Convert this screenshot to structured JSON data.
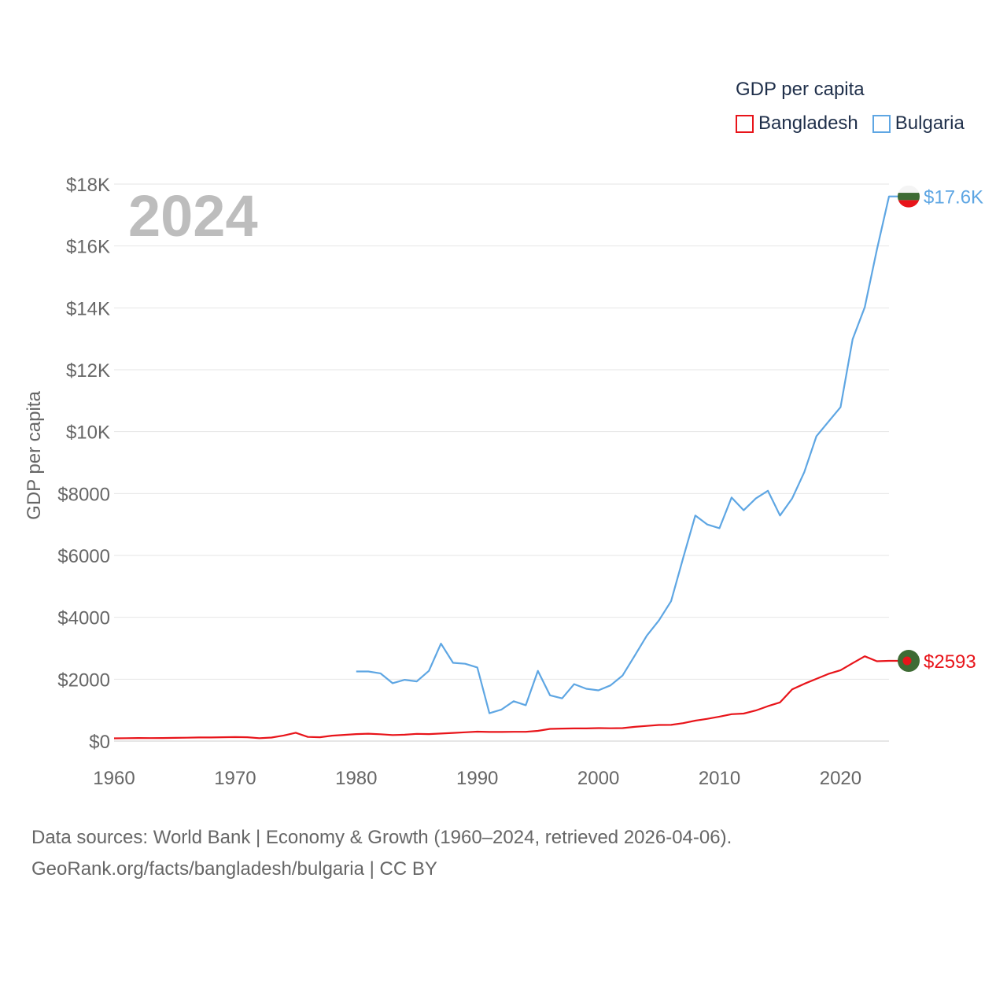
{
  "legend": {
    "title": "GDP per capita",
    "items": [
      {
        "label": "Bangladesh",
        "color": "#e8141a"
      },
      {
        "label": "Bulgaria",
        "color": "#5ea6e3"
      }
    ]
  },
  "year_label": "2024",
  "footer": {
    "line1": "Data sources: World Bank | Economy & Growth (1960–2024, retrieved 2026-04-06).",
    "line2": "GeoRank.org/facts/bangladesh/bulgaria | CC BY"
  },
  "chart_data": {
    "type": "line",
    "ylabel": "GDP per capita",
    "xlim": [
      1960,
      2024
    ],
    "ylim": [
      0,
      18000
    ],
    "x_ticks": [
      {
        "value": 1960,
        "label": "1960"
      },
      {
        "value": 1970,
        "label": "1970"
      },
      {
        "value": 1980,
        "label": "1980"
      },
      {
        "value": 1990,
        "label": "1990"
      },
      {
        "value": 2000,
        "label": "2000"
      },
      {
        "value": 2010,
        "label": "2010"
      },
      {
        "value": 2020,
        "label": "2020"
      }
    ],
    "y_ticks": [
      {
        "value": 0,
        "label": "$0"
      },
      {
        "value": 2000,
        "label": "$2000"
      },
      {
        "value": 4000,
        "label": "$4000"
      },
      {
        "value": 6000,
        "label": "$6000"
      },
      {
        "value": 8000,
        "label": "$8000"
      },
      {
        "value": 10000,
        "label": "$10K"
      },
      {
        "value": 12000,
        "label": "$12K"
      },
      {
        "value": 14000,
        "label": "$14K"
      },
      {
        "value": 16000,
        "label": "$16K"
      },
      {
        "value": 18000,
        "label": "$18K"
      }
    ],
    "grid": true,
    "series": [
      {
        "name": "Bangladesh",
        "color": "#e8141a",
        "end_label": "$2593",
        "flag_colors": {
          "field": "#3e6b34",
          "disc": "#e8141a"
        },
        "points": [
          [
            1960,
            90
          ],
          [
            1961,
            95
          ],
          [
            1962,
            98
          ],
          [
            1963,
            97
          ],
          [
            1964,
            98
          ],
          [
            1965,
            105
          ],
          [
            1966,
            110
          ],
          [
            1967,
            117
          ],
          [
            1968,
            118
          ],
          [
            1969,
            125
          ],
          [
            1970,
            130
          ],
          [
            1971,
            125
          ],
          [
            1972,
            95
          ],
          [
            1973,
            115
          ],
          [
            1974,
            180
          ],
          [
            1975,
            270
          ],
          [
            1976,
            135
          ],
          [
            1977,
            125
          ],
          [
            1978,
            175
          ],
          [
            1979,
            200
          ],
          [
            1980,
            225
          ],
          [
            1981,
            240
          ],
          [
            1982,
            220
          ],
          [
            1983,
            195
          ],
          [
            1984,
            205
          ],
          [
            1985,
            235
          ],
          [
            1986,
            225
          ],
          [
            1987,
            245
          ],
          [
            1988,
            265
          ],
          [
            1989,
            285
          ],
          [
            1990,
            305
          ],
          [
            1991,
            295
          ],
          [
            1992,
            295
          ],
          [
            1993,
            300
          ],
          [
            1994,
            300
          ],
          [
            1995,
            330
          ],
          [
            1996,
            395
          ],
          [
            1997,
            405
          ],
          [
            1998,
            410
          ],
          [
            1999,
            410
          ],
          [
            2000,
            420
          ],
          [
            2001,
            415
          ],
          [
            2002,
            420
          ],
          [
            2003,
            460
          ],
          [
            2004,
            490
          ],
          [
            2005,
            520
          ],
          [
            2006,
            525
          ],
          [
            2007,
            580
          ],
          [
            2008,
            660
          ],
          [
            2009,
            720
          ],
          [
            2010,
            790
          ],
          [
            2011,
            870
          ],
          [
            2012,
            890
          ],
          [
            2013,
            990
          ],
          [
            2014,
            1130
          ],
          [
            2015,
            1250
          ],
          [
            2016,
            1670
          ],
          [
            2017,
            1850
          ],
          [
            2018,
            2010
          ],
          [
            2019,
            2170
          ],
          [
            2020,
            2290
          ],
          [
            2021,
            2520
          ],
          [
            2022,
            2740
          ],
          [
            2023,
            2580
          ],
          [
            2024,
            2593
          ]
        ]
      },
      {
        "name": "Bulgaria",
        "color": "#5ea6e3",
        "end_label": "$17.6K",
        "flag_colors": {
          "top": "#f4f4f4",
          "middle": "#3e6b34",
          "bottom": "#e8141a"
        },
        "points": [
          [
            1980,
            2250
          ],
          [
            1981,
            2250
          ],
          [
            1982,
            2190
          ],
          [
            1983,
            1870
          ],
          [
            1984,
            1980
          ],
          [
            1985,
            1930
          ],
          [
            1986,
            2270
          ],
          [
            1987,
            3150
          ],
          [
            1988,
            2530
          ],
          [
            1989,
            2500
          ],
          [
            1990,
            2380
          ],
          [
            1991,
            900
          ],
          [
            1992,
            1020
          ],
          [
            1993,
            1290
          ],
          [
            1994,
            1160
          ],
          [
            1995,
            2270
          ],
          [
            1996,
            1480
          ],
          [
            1997,
            1380
          ],
          [
            1998,
            1840
          ],
          [
            1999,
            1690
          ],
          [
            2000,
            1640
          ],
          [
            2001,
            1800
          ],
          [
            2002,
            2120
          ],
          [
            2003,
            2760
          ],
          [
            2004,
            3410
          ],
          [
            2005,
            3900
          ],
          [
            2006,
            4520
          ],
          [
            2007,
            5920
          ],
          [
            2008,
            7290
          ],
          [
            2009,
            7000
          ],
          [
            2010,
            6880
          ],
          [
            2011,
            7870
          ],
          [
            2012,
            7460
          ],
          [
            2013,
            7840
          ],
          [
            2014,
            8090
          ],
          [
            2015,
            7290
          ],
          [
            2016,
            7840
          ],
          [
            2017,
            8690
          ],
          [
            2018,
            9850
          ],
          [
            2019,
            10320
          ],
          [
            2020,
            10790
          ],
          [
            2021,
            12990
          ],
          [
            2022,
            14020
          ],
          [
            2023,
            15880
          ],
          [
            2024,
            17600
          ]
        ]
      }
    ]
  }
}
